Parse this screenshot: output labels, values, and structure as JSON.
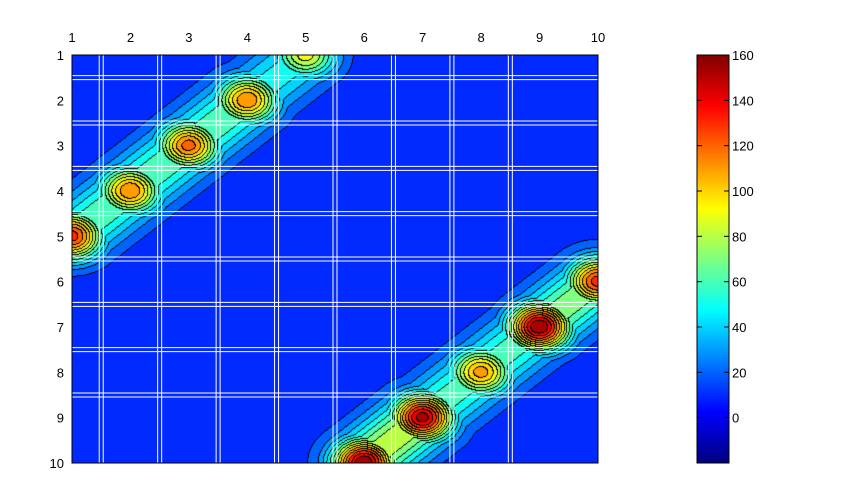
{
  "chart_data": {
    "type": "heatmap",
    "subtype": "filled contour plot",
    "title": "",
    "xlabel": "",
    "ylabel": "",
    "x_ticks": [
      "1",
      "2",
      "3",
      "4",
      "5",
      "6",
      "7",
      "8",
      "9",
      "10"
    ],
    "y_ticks": [
      "1",
      "2",
      "3",
      "4",
      "5",
      "6",
      "7",
      "8",
      "9",
      "10"
    ],
    "x_axis_location": "top",
    "y_axis_direction": "reversed",
    "xlim": [
      1,
      10
    ],
    "ylim": [
      1,
      10
    ],
    "grid": true,
    "grid_color": "#ffffff",
    "colormap": "jet",
    "colorbar": {
      "location": "right",
      "range": [
        -20,
        160
      ],
      "ticks": [
        "0",
        "20",
        "40",
        "60",
        "80",
        "100",
        "120",
        "140",
        "160"
      ],
      "tick_values": [
        0,
        20,
        40,
        60,
        80,
        100,
        120,
        140,
        160
      ]
    },
    "contour_levels": [
      -15,
      -5,
      5,
      15,
      25,
      35,
      45,
      55,
      65,
      75,
      85,
      95,
      105,
      115,
      125,
      135,
      145
    ],
    "peaks": [
      {
        "x": 1,
        "y": 5,
        "value": 130
      },
      {
        "x": 2,
        "y": 4,
        "value": 115
      },
      {
        "x": 3,
        "y": 3,
        "value": 120
      },
      {
        "x": 4,
        "y": 2,
        "value": 115
      },
      {
        "x": 5,
        "y": 1,
        "value": 90
      },
      {
        "x": 6,
        "y": 10,
        "value": 155
      },
      {
        "x": 7,
        "y": 9,
        "value": 150
      },
      {
        "x": 8,
        "y": 8,
        "value": 110
      },
      {
        "x": 9,
        "y": 7,
        "value": 155
      },
      {
        "x": 10,
        "y": 6,
        "value": 130
      }
    ],
    "background_levels": {
      "low": -15,
      "mid": 5
    }
  }
}
